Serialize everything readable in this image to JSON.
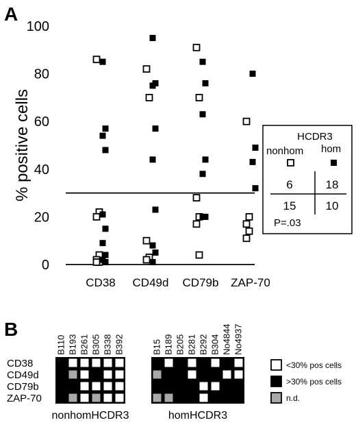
{
  "panel_a": {
    "label": "A",
    "ylabel": "% positive cells",
    "yticks": [
      "0",
      "20",
      "40",
      "60",
      "80",
      "100"
    ],
    "legend": {
      "title": "HCDR3",
      "col1": "nonhom",
      "col2": "hom",
      "cells": [
        "6",
        "18",
        "15",
        "10"
      ],
      "pvalue": "P=.03"
    }
  },
  "chart_data": {
    "type": "scatter",
    "categories": [
      "CD38",
      "CD49d",
      "CD79b",
      "ZAP-70"
    ],
    "ylim": [
      0,
      100
    ],
    "threshold": 30,
    "series": [
      {
        "name": "nonhom",
        "marker": "open-square",
        "points": [
          {
            "cat": "CD38",
            "y": 86
          },
          {
            "cat": "CD38",
            "y": 22
          },
          {
            "cat": "CD38",
            "y": 20
          },
          {
            "cat": "CD38",
            "y": 4
          },
          {
            "cat": "CD38",
            "y": 2
          },
          {
            "cat": "CD38",
            "y": 1
          },
          {
            "cat": "CD38",
            "y": 1
          },
          {
            "cat": "CD49d",
            "y": 82
          },
          {
            "cat": "CD49d",
            "y": 70
          },
          {
            "cat": "CD49d",
            "y": 10
          },
          {
            "cat": "CD49d",
            "y": 3
          },
          {
            "cat": "CD49d",
            "y": 2
          },
          {
            "cat": "CD79b",
            "y": 91
          },
          {
            "cat": "CD79b",
            "y": 70
          },
          {
            "cat": "CD79b",
            "y": 28
          },
          {
            "cat": "CD79b",
            "y": 20
          },
          {
            "cat": "CD79b",
            "y": 17
          },
          {
            "cat": "CD79b",
            "y": 4
          },
          {
            "cat": "ZAP-70",
            "y": 60
          },
          {
            "cat": "ZAP-70",
            "y": 20
          },
          {
            "cat": "ZAP-70",
            "y": 17
          },
          {
            "cat": "ZAP-70",
            "y": 14
          },
          {
            "cat": "ZAP-70",
            "y": 11
          }
        ]
      },
      {
        "name": "hom",
        "marker": "filled-square",
        "points": [
          {
            "cat": "CD38",
            "y": 85
          },
          {
            "cat": "CD38",
            "y": 57
          },
          {
            "cat": "CD38",
            "y": 54
          },
          {
            "cat": "CD38",
            "y": 48
          },
          {
            "cat": "CD38",
            "y": 21
          },
          {
            "cat": "CD38",
            "y": 15
          },
          {
            "cat": "CD38",
            "y": 9
          },
          {
            "cat": "CD38",
            "y": 4
          },
          {
            "cat": "CD38",
            "y": 2
          },
          {
            "cat": "CD38",
            "y": 1
          },
          {
            "cat": "CD49d",
            "y": 95
          },
          {
            "cat": "CD49d",
            "y": 76
          },
          {
            "cat": "CD49d",
            "y": 75
          },
          {
            "cat": "CD49d",
            "y": 57
          },
          {
            "cat": "CD49d",
            "y": 44
          },
          {
            "cat": "CD49d",
            "y": 23
          },
          {
            "cat": "CD49d",
            "y": 8
          },
          {
            "cat": "CD49d",
            "y": 5
          },
          {
            "cat": "CD49d",
            "y": 1
          },
          {
            "cat": "CD79b",
            "y": 85
          },
          {
            "cat": "CD79b",
            "y": 76
          },
          {
            "cat": "CD79b",
            "y": 63
          },
          {
            "cat": "CD79b",
            "y": 44
          },
          {
            "cat": "CD79b",
            "y": 38
          },
          {
            "cat": "CD79b",
            "y": 20
          },
          {
            "cat": "CD79b",
            "y": 20
          },
          {
            "cat": "ZAP-70",
            "y": 80
          },
          {
            "cat": "ZAP-70",
            "y": 49
          },
          {
            "cat": "ZAP-70",
            "y": 43
          },
          {
            "cat": "ZAP-70",
            "y": 32
          }
        ]
      }
    ]
  },
  "panel_b": {
    "label": "B",
    "rows": [
      "CD38",
      "CD49d",
      "CD79b",
      "ZAP-70"
    ],
    "groups": [
      {
        "label": "nonhomHCDR3",
        "samples": [
          "B110",
          "B193",
          "B261",
          "B305",
          "B338",
          "B392"
        ],
        "cells": [
          [
            "b",
            "w",
            "w",
            "w",
            "w",
            "w"
          ],
          [
            "b",
            "g",
            "w",
            "b",
            "w",
            "w"
          ],
          [
            "b",
            "b",
            "w",
            "w",
            "w",
            "w"
          ],
          [
            "b",
            "g",
            "w",
            "g",
            "w",
            "w"
          ]
        ]
      },
      {
        "label": "homHCDR3",
        "samples": [
          "B15",
          "B189",
          "B205",
          "B281",
          "B292",
          "B304",
          "No4844",
          "No4937"
        ],
        "cells": [
          [
            "b",
            "w",
            "b",
            "w",
            "b",
            "w",
            "b",
            "w"
          ],
          [
            "g",
            "b",
            "b",
            "w",
            "b",
            "b",
            "w",
            "w"
          ],
          [
            "b",
            "b",
            "b",
            "b",
            "w",
            "w",
            "b",
            "b"
          ],
          [
            "g",
            "g",
            "b",
            "b",
            "w",
            "b",
            "b",
            "b"
          ]
        ]
      }
    ],
    "legend": [
      {
        "key": "w",
        "label": "<30% pos cells"
      },
      {
        "key": "b",
        "label": ">30% pos cells"
      },
      {
        "key": "g",
        "label": "n.d."
      }
    ],
    "colors": {
      "w": "#ffffff",
      "b": "#000000",
      "g": "#a8a8a8"
    }
  }
}
